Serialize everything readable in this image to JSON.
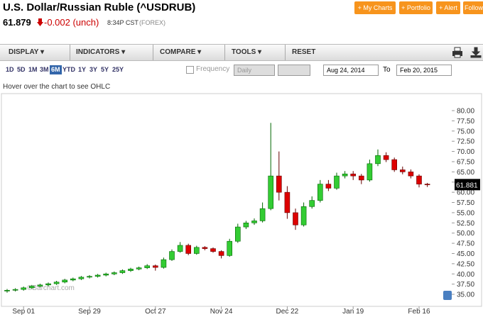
{
  "header": {
    "title": "U.S. Dollar/Russian Ruble (^USDRUB)",
    "price": "61.879",
    "change": "-0.002 (unch)",
    "time": "8:34P CST",
    "exchange": "(FOREX)",
    "buttons": [
      "+ My Charts",
      "+ Portfolio",
      "+ Alert",
      "Follow"
    ]
  },
  "toolbar": {
    "menus": [
      "DISPLAY",
      "INDICATORS",
      "COMPARE",
      "TOOLS"
    ],
    "reset": "RESET"
  },
  "periods": {
    "items": [
      "1D",
      "5D",
      "1M",
      "3M",
      "6M",
      "YTD",
      "1Y",
      "3Y",
      "5Y",
      "25Y"
    ],
    "active": "6M",
    "frequency_label": "Frequency",
    "frequency": "Daily",
    "from": "Aug 24, 2014",
    "to_label": "To",
    "to": "Feb 20, 2015"
  },
  "hint": "Hover over the chart to see OHLC",
  "chart_data": {
    "type": "candlestick",
    "watermark": "©Barchart.com",
    "last_label": "61.881",
    "grid": false,
    "up_color": "#33cc33",
    "up_edge": "#006600",
    "down_color": "#dd0000",
    "down_edge": "#660000",
    "categories": [
      null,
      null,
      "Sep 01",
      null,
      null,
      null,
      null,
      null,
      null,
      null,
      "Sep 29",
      null,
      null,
      null,
      null,
      null,
      null,
      null,
      "Oct 27",
      null,
      null,
      null,
      null,
      null,
      null,
      null,
      "Nov 24",
      null,
      null,
      null,
      null,
      null,
      null,
      null,
      "Dec 22",
      null,
      null,
      null,
      null,
      null,
      null,
      null,
      "Jan 19",
      null,
      null,
      null,
      null,
      null,
      null,
      null,
      "Feb 16",
      null
    ],
    "open": [
      35.8,
      36.0,
      36.2,
      36.6,
      37.0,
      37.3,
      37.6,
      38.0,
      38.5,
      38.8,
      39.2,
      39.4,
      39.7,
      40.0,
      40.3,
      40.8,
      41.2,
      41.5,
      42.0,
      41.6,
      43.5,
      45.5,
      47.0,
      45.0,
      46.5,
      46.2,
      45.5,
      44.5,
      48.0,
      51.5,
      52.5,
      53.0,
      56.0,
      64.0,
      60.0,
      55.0,
      52.0,
      56.5,
      58.0,
      62.0,
      61.0,
      64.0,
      64.5,
      64.0,
      63.0,
      67.0,
      69.0,
      68.0,
      65.5,
      65.0,
      64.0,
      62.0
    ],
    "high": [
      36.3,
      36.5,
      36.9,
      37.3,
      37.6,
      37.9,
      38.3,
      38.8,
      39.1,
      39.5,
      39.7,
      40.0,
      40.3,
      40.6,
      41.1,
      41.5,
      41.8,
      42.4,
      42.3,
      44.0,
      46.0,
      47.8,
      47.4,
      46.9,
      46.8,
      46.5,
      45.8,
      48.6,
      52.3,
      53.0,
      53.6,
      57.5,
      77.0,
      70.0,
      61.5,
      56.0,
      57.5,
      59.0,
      63.0,
      63.0,
      64.8,
      65.2,
      65.2,
      64.5,
      68.0,
      70.5,
      69.8,
      68.5,
      66.3,
      65.6,
      64.4,
      62.3
    ],
    "low": [
      35.4,
      35.7,
      35.9,
      36.3,
      36.7,
      37.0,
      37.3,
      37.7,
      38.2,
      38.5,
      38.9,
      39.1,
      39.4,
      39.7,
      40.0,
      40.5,
      40.9,
      41.2,
      40.8,
      41.3,
      43.2,
      45.2,
      44.6,
      44.7,
      45.8,
      45.2,
      43.8,
      44.2,
      47.6,
      51.0,
      52.0,
      52.6,
      55.6,
      58.0,
      53.5,
      50.8,
      51.6,
      56.0,
      57.5,
      60.3,
      60.6,
      63.4,
      63.0,
      62.0,
      62.6,
      66.4,
      67.4,
      65.0,
      64.4,
      63.4,
      61.2,
      61.3
    ],
    "close": [
      36.0,
      36.2,
      36.6,
      37.0,
      37.3,
      37.6,
      38.0,
      38.5,
      38.8,
      39.2,
      39.4,
      39.7,
      40.0,
      40.3,
      40.8,
      41.2,
      41.5,
      42.0,
      41.6,
      43.5,
      45.5,
      47.0,
      45.0,
      46.5,
      46.2,
      45.5,
      44.5,
      48.0,
      51.5,
      52.5,
      53.0,
      56.0,
      64.0,
      60.0,
      55.0,
      52.0,
      56.5,
      58.0,
      62.0,
      61.0,
      64.0,
      64.5,
      64.0,
      63.0,
      67.0,
      69.0,
      68.0,
      65.5,
      65.0,
      64.0,
      62.0,
      61.88
    ],
    "ylim": [
      32.4,
      83.65
    ],
    "yticks": [
      {
        "value": 35,
        "label": "35.00"
      },
      {
        "value": 37.5,
        "label": "37.50"
      },
      {
        "value": 40,
        "label": "40.00"
      },
      {
        "value": 42.5,
        "label": "42.50"
      },
      {
        "value": 45,
        "label": "45.00"
      },
      {
        "value": 47.5,
        "label": "47.50"
      },
      {
        "value": 50,
        "label": "50.00"
      },
      {
        "value": 52.5,
        "label": "52.50"
      },
      {
        "value": 55,
        "label": "55.00"
      },
      {
        "value": 57.5,
        "label": "57.50"
      },
      {
        "value": 60,
        "label": "60.00"
      },
      {
        "value": 62.5,
        "label": "62.50"
      },
      {
        "value": 65,
        "label": "65.00"
      },
      {
        "value": 67.5,
        "label": "67.50"
      },
      {
        "value": 70,
        "label": "70.00"
      },
      {
        "value": 72.5,
        "label": "72.50"
      },
      {
        "value": 75,
        "label": "75.00"
      },
      {
        "value": 77.5,
        "label": "77.50"
      },
      {
        "value": 80,
        "label": "80.00"
      }
    ]
  }
}
